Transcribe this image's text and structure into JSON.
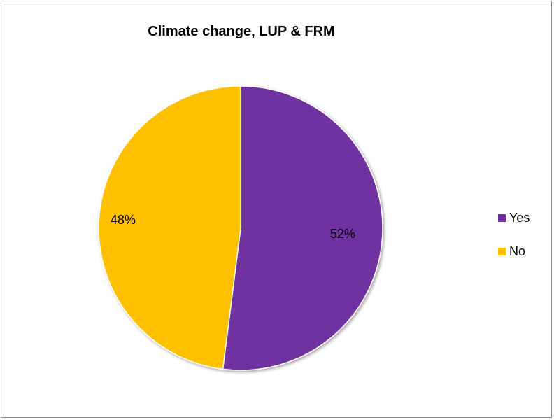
{
  "chart_data": {
    "type": "pie",
    "title": "Climate change, LUP & FRM",
    "categories": [
      "Yes",
      "No"
    ],
    "values": [
      52,
      48
    ],
    "data_labels": [
      "52%",
      "48%"
    ],
    "colors": [
      "#7030A0",
      "#FFC000"
    ],
    "legend_position": "right",
    "start_angle": "12 o'clock",
    "direction": "clockwise"
  }
}
